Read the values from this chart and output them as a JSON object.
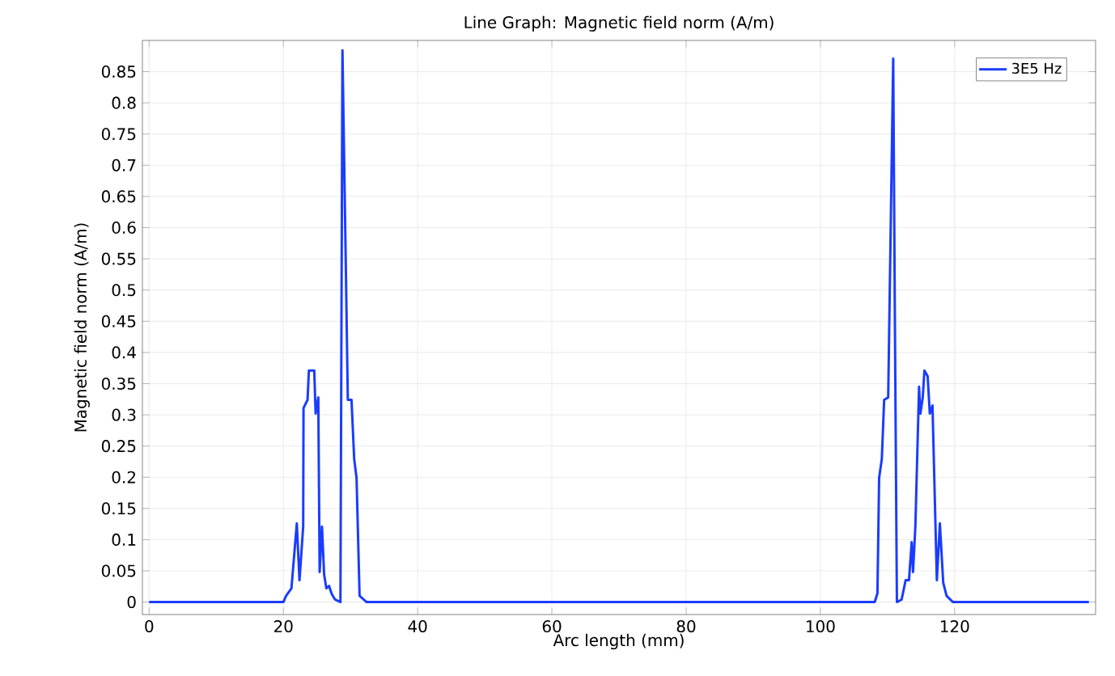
{
  "chart_data": {
    "type": "line",
    "title": "Line Graph: Magnetic field norm (A/m)",
    "xlabel": "Arc length (mm)",
    "ylabel": "Magnetic field norm (A/m)",
    "xlim": [
      -1,
      141
    ],
    "ylim": [
      -0.02,
      0.9
    ],
    "xticks": [
      0,
      20,
      40,
      60,
      80,
      100,
      120
    ],
    "yticks": [
      0,
      0.05,
      0.1,
      0.15,
      0.2,
      0.25,
      0.3,
      0.35,
      0.4,
      0.45,
      0.5,
      0.55,
      0.6,
      0.65,
      0.7,
      0.75,
      0.8,
      0.85
    ],
    "grid": true,
    "legend": "top right",
    "series": [
      {
        "name": "3E5 Hz",
        "color": "#1a3cff",
        "x": [
          0,
          20,
          20.4,
          21.2,
          22.0,
          22.4,
          22.95,
          23.0,
          23.6,
          23.8,
          24.6,
          24.8,
          25.2,
          25.4,
          25.75,
          26.07,
          26.4,
          26.8,
          27.2,
          27.7,
          28.5,
          28.8,
          29.3,
          29.6,
          30.15,
          30.55,
          30.9,
          31.35,
          32.4,
          108.1,
          108.5,
          108.75,
          109.15,
          109.5,
          110.1,
          110.85,
          111.1,
          111.4,
          112.1,
          112.7,
          113.2,
          113.6,
          113.8,
          114.15,
          114.7,
          114.9,
          115.25,
          115.5,
          115.98,
          116.3,
          116.7,
          117.35,
          117.8,
          118.3,
          118.8,
          119.75,
          140
        ],
        "values": [
          0,
          0,
          0.01,
          0.022,
          0.126,
          0.035,
          0.121,
          0.311,
          0.324,
          0.371,
          0.371,
          0.302,
          0.328,
          0.048,
          0.121,
          0.044,
          0.022,
          0.026,
          0.013,
          0.004,
          0,
          0.884,
          0.539,
          0.324,
          0.324,
          0.229,
          0.199,
          0.01,
          0,
          0,
          0.014,
          0.199,
          0.229,
          0.324,
          0.328,
          0.871,
          0.45,
          0,
          0.004,
          0.035,
          0.035,
          0.096,
          0.048,
          0.121,
          0.345,
          0.302,
          0.328,
          0.371,
          0.362,
          0.302,
          0.315,
          0.035,
          0.126,
          0.031,
          0.01,
          0,
          0
        ]
      }
    ]
  }
}
